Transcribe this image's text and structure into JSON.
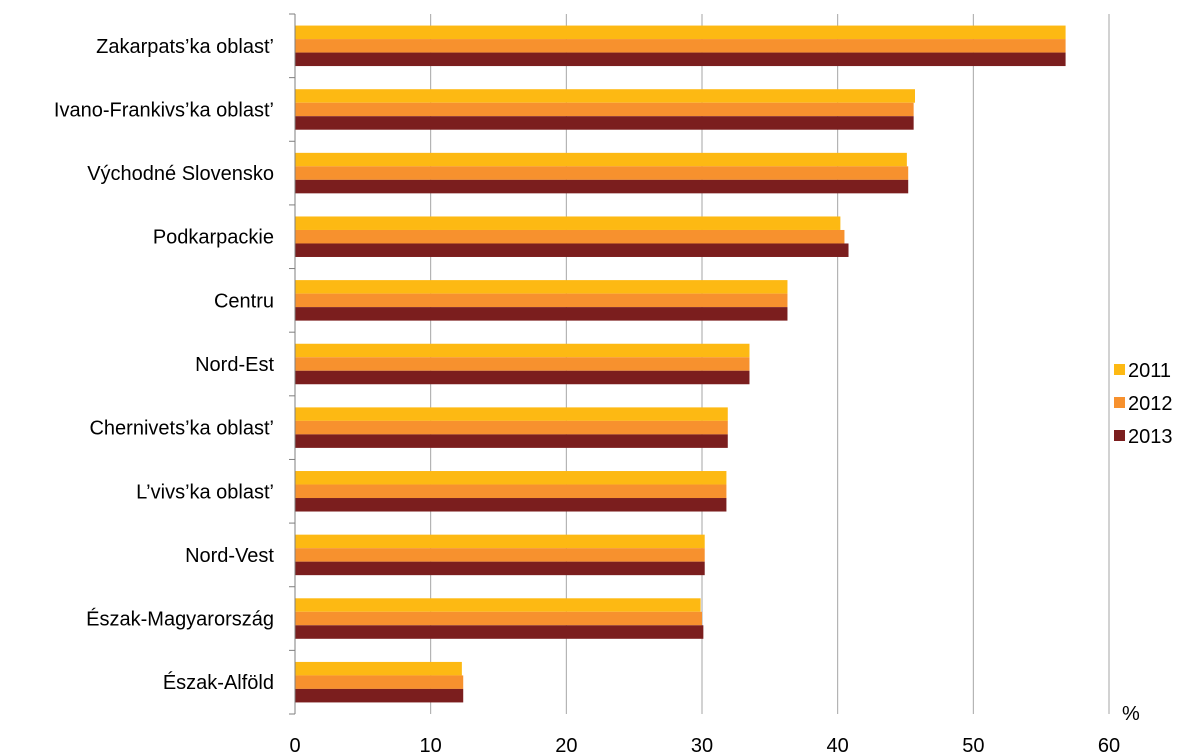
{
  "chart_data": {
    "type": "bar",
    "orientation": "horizontal",
    "categories": [
      "Zakarpats’ka oblast’",
      "Ivano-Frankivs’ka oblast’",
      "Východné Slovensko",
      "Podkarpackie",
      "Centru",
      "Nord-Est",
      "Chernivets’ka oblast’",
      "L’vivs’ka oblast’",
      "Nord-Vest",
      "Észak-Magyarország",
      "Észak-Alföld"
    ],
    "series": [
      {
        "name": "2011",
        "color": "#FDB913",
        "values": [
          56.8,
          45.7,
          45.1,
          40.2,
          36.3,
          33.5,
          31.9,
          31.8,
          30.2,
          29.9,
          12.3
        ]
      },
      {
        "name": "2012",
        "color": "#F7912E",
        "values": [
          56.8,
          45.6,
          45.2,
          40.5,
          36.3,
          33.5,
          31.9,
          31.8,
          30.2,
          30.0,
          12.4
        ]
      },
      {
        "name": "2013",
        "color": "#7B1E1E",
        "values": [
          56.8,
          45.6,
          45.2,
          40.8,
          36.3,
          33.5,
          31.9,
          31.8,
          30.2,
          30.1,
          12.4
        ]
      }
    ],
    "xlim": [
      0,
      60
    ],
    "xticks": [
      0,
      10,
      20,
      30,
      40,
      50,
      60
    ],
    "unit_label": "%",
    "grid": "vertical",
    "legend_position": "right",
    "title": ""
  }
}
